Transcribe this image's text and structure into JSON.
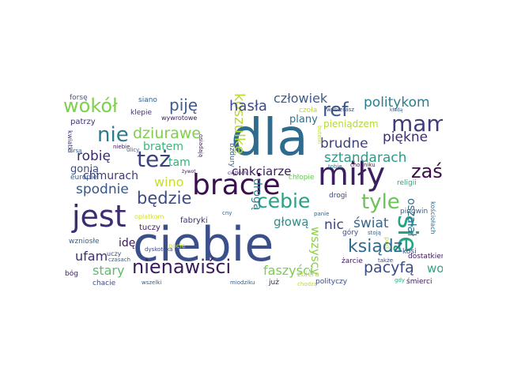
{
  "words": [
    {
      "text": "ciebie",
      "color": "#3b4f8a"
    },
    {
      "text": "dla",
      "color": "#2f6b8e"
    },
    {
      "text": "miły",
      "color": "#3c1f5e"
    },
    {
      "text": "bracie",
      "color": "#3a0f4f"
    },
    {
      "text": "jest",
      "color": "#3e2c70"
    },
    {
      "text": "się",
      "color": "#25a384"
    },
    {
      "text": "mam",
      "color": "#3f3c78"
    },
    {
      "text": "nienawiści",
      "color": "#3b1c5c"
    },
    {
      "text": "ksiądz",
      "color": "#2e6b8e"
    },
    {
      "text": "też",
      "color": "#3b4280"
    },
    {
      "text": "cebie",
      "color": "#2aa085"
    },
    {
      "text": "tyle",
      "color": "#6bc35a"
    },
    {
      "text": "nie",
      "color": "#2a7b8e"
    },
    {
      "text": "wokół",
      "color": "#7ecf4c"
    },
    {
      "text": "będzie",
      "color": "#3b4b85"
    },
    {
      "text": "ref",
      "color": "#38588c"
    },
    {
      "text": "zaś",
      "color": "#3c0d4b"
    },
    {
      "text": "koszulkę",
      "color": "#b8d935"
    },
    {
      "text": "dziurawe",
      "color": "#7fcf4c"
    },
    {
      "text": "piję",
      "color": "#3b5b8c"
    },
    {
      "text": "hasła",
      "color": "#3a4a84"
    },
    {
      "text": "człowiek",
      "color": "#3b5c8c"
    },
    {
      "text": "politykom",
      "color": "#2c7d8e"
    },
    {
      "text": "piękne",
      "color": "#3f2d70"
    },
    {
      "text": "brudne",
      "color": "#3b3f7e"
    },
    {
      "text": "sztandarach",
      "color": "#2f9a87"
    },
    {
      "text": "spodnie",
      "color": "#35588b"
    },
    {
      "text": "robię",
      "color": "#3b2a6e"
    },
    {
      "text": "bratem",
      "color": "#38b87a"
    },
    {
      "text": "wino",
      "color": "#c9dd2a"
    },
    {
      "text": "tam",
      "color": "#31b27d"
    },
    {
      "text": "chmurach",
      "color": "#3f3a78"
    },
    {
      "text": "cinkciarze",
      "color": "#3b1b5a"
    },
    {
      "text": "plany",
      "color": "#2e6f8e"
    },
    {
      "text": "pieniądzem",
      "color": "#b5d935"
    },
    {
      "text": "drogą",
      "color": "#2a7f8e"
    },
    {
      "text": "nic",
      "color": "#3b4483"
    },
    {
      "text": "świat",
      "color": "#35678c"
    },
    {
      "text": "głową",
      "color": "#2b8f8a"
    },
    {
      "text": "wszyscy",
      "color": "#8ad147"
    },
    {
      "text": "oszalał",
      "color": "#2c728e"
    },
    {
      "text": "pacyfą",
      "color": "#3a4b85"
    },
    {
      "text": "wolny",
      "color": "#31a383"
    },
    {
      "text": "faszyści",
      "color": "#7fcc51"
    },
    {
      "text": "stary",
      "color": "#57c066"
    },
    {
      "text": "ufam",
      "color": "#3e2e71"
    },
    {
      "text": "idę",
      "color": "#3b1a5a"
    },
    {
      "text": "gonią",
      "color": "#3b4b85"
    },
    {
      "text": "forsę",
      "color": "#3b5b8c"
    },
    {
      "text": "siano",
      "color": "#35618d"
    },
    {
      "text": "patrzy",
      "color": "#3c3274"
    },
    {
      "text": "klepie",
      "color": "#3c3274"
    },
    {
      "text": "wywrotowe",
      "color": "#3b1a5a"
    },
    {
      "text": "kwiatki",
      "color": "#3b3a78"
    },
    {
      "text": "niebie",
      "color": "#3b1a5a"
    },
    {
      "text": "europie",
      "color": "#3b5b8c"
    },
    {
      "text": "czoła",
      "color": "#b6d934"
    },
    {
      "text": "wybierasz",
      "color": "#3b4b85"
    },
    {
      "text": "butelki",
      "color": "#bcdc32"
    },
    {
      "text": "żywot",
      "color": "#3b1a5a"
    },
    {
      "text": "ciężkich",
      "color": "#3b1a5a"
    },
    {
      "text": "osiadają",
      "color": "#3b1a5a"
    },
    {
      "text": "bzdury",
      "color": "#35618d"
    },
    {
      "text": "chłopie",
      "color": "#6cc35a"
    },
    {
      "text": "tobie",
      "color": "#2a7f8e"
    },
    {
      "text": "chodniku",
      "color": "#3b1a5a"
    },
    {
      "text": "religii",
      "color": "#31a383"
    },
    {
      "text": "pod",
      "color": "#bcdc32"
    },
    {
      "text": "kościołach",
      "color": "#2c728e"
    },
    {
      "text": "drogi",
      "color": "#3b4b85"
    },
    {
      "text": "opłatkom",
      "color": "#d7e219"
    },
    {
      "text": "fabryki",
      "color": "#3c3274"
    },
    {
      "text": "tuczy",
      "color": "#3b1a5a"
    },
    {
      "text": "cny",
      "color": "#35618d"
    },
    {
      "text": "panie",
      "color": "#35618d"
    },
    {
      "text": "góry",
      "color": "#3b4b85"
    },
    {
      "text": "pingwin",
      "color": "#3b5b8c"
    },
    {
      "text": "kosi",
      "color": "#3b4b85"
    },
    {
      "text": "wzniosłe",
      "color": "#35618d"
    },
    {
      "text": "pocie",
      "color": "#bcdc32"
    },
    {
      "text": "dyskoteka",
      "color": "#3b4b85"
    },
    {
      "text": "ulicy",
      "color": "#35618d"
    },
    {
      "text": "stoją",
      "color": "#35618d"
    },
    {
      "text": "uczy",
      "color": "#3b4b85"
    },
    {
      "text": "czasach",
      "color": "#35618d"
    },
    {
      "text": "żarcie",
      "color": "#3b1a5a"
    },
    {
      "text": "także",
      "color": "#3b4b85"
    },
    {
      "text": "dostatkiem",
      "color": "#3b1a5a"
    },
    {
      "text": "bóg",
      "color": "#3b1a5a"
    },
    {
      "text": "chacie",
      "color": "#3b4b85"
    },
    {
      "text": "wszelki",
      "color": "#35618d"
    },
    {
      "text": "miodziku",
      "color": "#35618d"
    },
    {
      "text": "zbiera",
      "color": "#bcdc32"
    },
    {
      "text": "chodzą",
      "color": "#bcdc32"
    },
    {
      "text": "już",
      "color": "#3b1a5a"
    },
    {
      "text": "polityczy",
      "color": "#3b4b85"
    },
    {
      "text": "gdy",
      "color": "#2bb07f"
    },
    {
      "text": "śmierci",
      "color": "#3b1a5a"
    },
    {
      "text": "kładą",
      "color": "#35618d"
    },
    {
      "text": "forsą",
      "color": "#35618d"
    }
  ]
}
